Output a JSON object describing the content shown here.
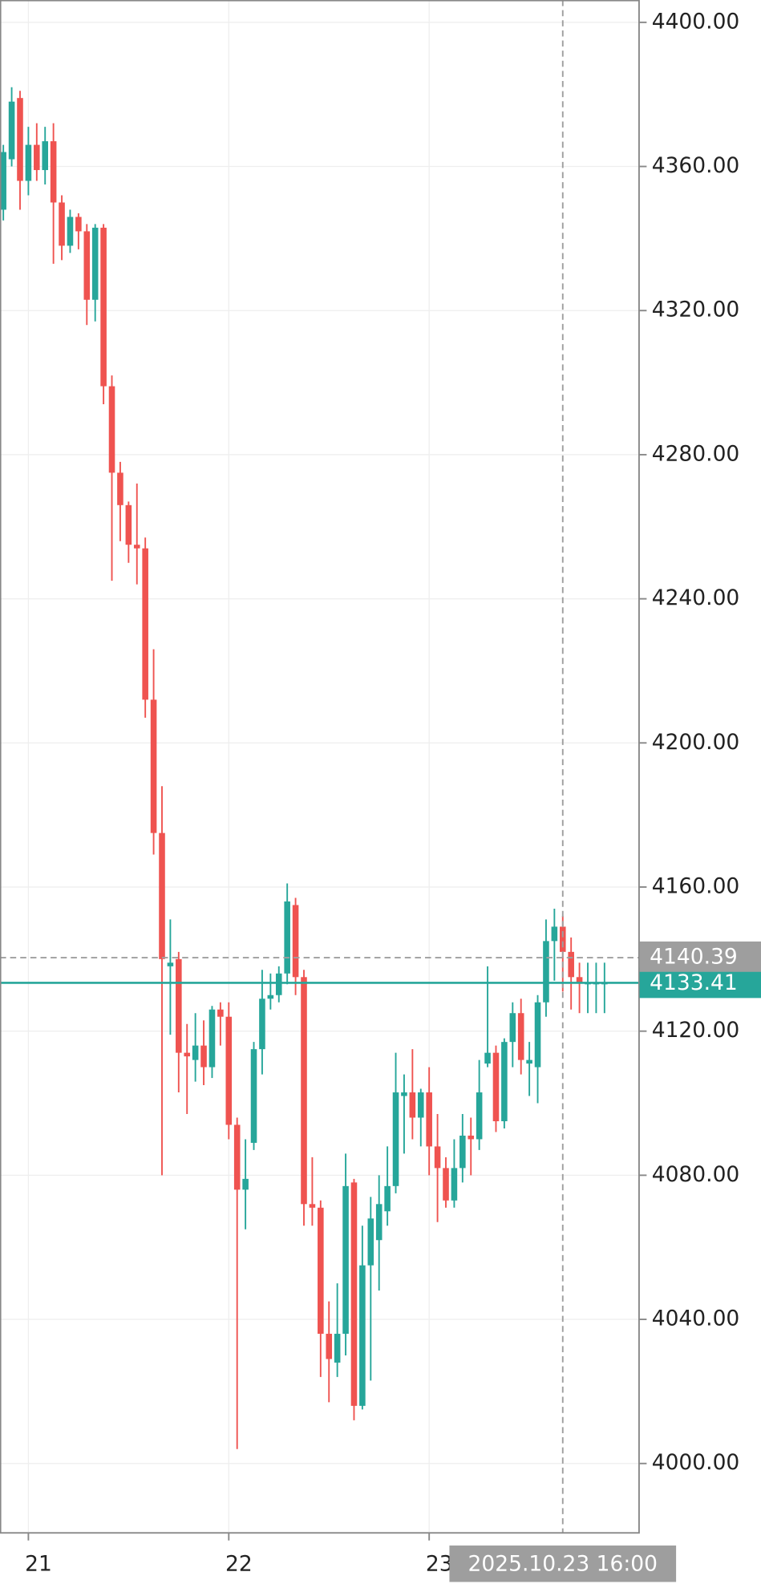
{
  "chart_data": {
    "type": "candlestick",
    "x": [
      -3,
      -2,
      -1,
      0,
      1,
      2,
      3,
      4,
      5,
      6,
      7,
      8,
      9,
      10,
      11,
      12,
      13,
      14,
      15,
      16,
      17,
      18,
      19,
      20,
      21,
      22,
      23,
      24,
      25,
      26,
      27,
      28,
      29,
      30,
      31,
      32,
      33,
      34,
      35,
      36,
      37,
      38,
      39,
      40,
      41,
      42,
      43,
      44,
      45,
      46,
      47,
      48,
      49,
      50,
      51,
      52,
      53,
      54,
      55,
      56,
      57,
      58,
      59,
      60,
      61,
      62,
      63,
      64,
      65,
      66,
      67,
      68,
      69
    ],
    "open": [
      4348,
      4362,
      4379,
      4356,
      4366,
      4359,
      4367,
      4350,
      4338,
      4346,
      4342,
      4323,
      4343,
      4299,
      4275,
      4266,
      4255,
      4254,
      4212,
      4175,
      4138,
      4140,
      4114,
      4112,
      4116,
      4110,
      4126,
      4124,
      4094,
      4076,
      4089,
      4115,
      4129,
      4130,
      4136,
      4155,
      4135,
      4072,
      4071,
      4036,
      4028,
      4036,
      4078,
      4016,
      4055,
      4062,
      4070,
      4077,
      4102,
      4103,
      4096,
      4103,
      4088,
      4082,
      4073,
      4082,
      4091,
      4090,
      4111,
      4114,
      4095,
      4117,
      4125,
      4111,
      4110,
      4128,
      4145,
      4149,
      4142,
      4135,
      4133,
      4133,
      4133
    ],
    "high": [
      4366,
      4382,
      4381,
      4371,
      4372,
      4371,
      4372,
      4352,
      4348,
      4347,
      4344,
      4344,
      4344,
      4302,
      4278,
      4267,
      4272,
      4257,
      4226,
      4188,
      4151,
      4142,
      4122,
      4125,
      4123,
      4127,
      4128,
      4128,
      4096,
      4090,
      4117,
      4137,
      4136,
      4138,
      4161,
      4157,
      4137,
      4085,
      4073,
      4045,
      4050,
      4086,
      4079,
      4066,
      4074,
      4080,
      4088,
      4114,
      4108,
      4115,
      4104,
      4110,
      4097,
      4085,
      4090,
      4097,
      4096,
      4112,
      4138,
      4116,
      4118,
      4128,
      4129,
      4117,
      4130,
      4151,
      4154,
      4152,
      4146,
      4139,
      4139,
      4139,
      4139
    ],
    "low": [
      4345,
      4360,
      4348,
      4352,
      4356,
      4355,
      4333,
      4334,
      4336,
      4337,
      4316,
      4317,
      4294,
      4245,
      4256,
      4250,
      4244,
      4207,
      4169,
      4080,
      4119,
      4103,
      4097,
      4106,
      4105,
      4107,
      4116,
      4090,
      4004,
      4065,
      4087,
      4108,
      4126,
      4128,
      4133,
      4130,
      4066,
      4066,
      4024,
      4017,
      4024,
      4030,
      4012,
      4015,
      4023,
      4048,
      4066,
      4075,
      4086,
      4090,
      4088,
      4080,
      4067,
      4071,
      4071,
      4078,
      4080,
      4087,
      4110,
      4092,
      4093,
      4110,
      4108,
      4102,
      4100,
      4124,
      4134,
      4131,
      4126,
      4125,
      4125,
      4125,
      4125
    ],
    "close": [
      4364,
      4378,
      4356,
      4366,
      4359,
      4367,
      4350,
      4338,
      4346,
      4342,
      4323,
      4343,
      4299,
      4275,
      4266,
      4255,
      4254,
      4212,
      4175,
      4140,
      4139,
      4114,
      4113,
      4116,
      4110,
      4126,
      4124,
      4094,
      4076,
      4079,
      4115,
      4129,
      4130,
      4136,
      4156,
      4135,
      4072,
      4071,
      4036,
      4029,
      4036,
      4077,
      4016,
      4055,
      4068,
      4072,
      4077,
      4103,
      4103,
      4096,
      4103,
      4088,
      4082,
      4073,
      4082,
      4091,
      4090,
      4103,
      4114,
      4095,
      4117,
      4125,
      4112,
      4112,
      4128,
      4145,
      4149,
      4142,
      4135,
      4133.41,
      4133.41,
      4133.41,
      4133.41
    ],
    "up_color": "#26a69a",
    "down_color": "#ef5350",
    "xlim": [
      -3.4,
      73.2
    ],
    "xticks": [
      {
        "value": 0,
        "label": "21"
      },
      {
        "value": 24,
        "label": "22"
      },
      {
        "value": 48,
        "label": "23"
      }
    ],
    "ylim": [
      3980.6,
      4406.2
    ],
    "yticks": [
      {
        "value": 4000,
        "label": "4000.00"
      },
      {
        "value": 4040,
        "label": "4040.00"
      },
      {
        "value": 4080,
        "label": "4080.00"
      },
      {
        "value": 4120,
        "label": "4120.00"
      },
      {
        "value": 4160,
        "label": "4160.00"
      },
      {
        "value": 4200,
        "label": "4200.00"
      },
      {
        "value": 4240,
        "label": "4240.00"
      },
      {
        "value": 4280,
        "label": "4280.00"
      },
      {
        "value": 4320,
        "label": "4320.00"
      },
      {
        "value": 4360,
        "label": "4360.00"
      },
      {
        "value": 4400,
        "label": "4400.00"
      }
    ],
    "grid": true,
    "crosshair": {
      "x": 64,
      "x_label": "2025.10.23 16:00",
      "price": 4140.39,
      "color": "#9e9e9e"
    },
    "last_price": {
      "value": 4133.41,
      "color": "#26a69a"
    }
  }
}
